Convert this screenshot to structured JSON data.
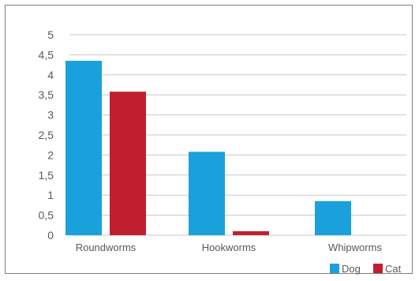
{
  "chart_data": {
    "type": "bar",
    "categories": [
      "Roundworms",
      "Hookworms",
      "Whipworms"
    ],
    "series": [
      {
        "name": "Dog",
        "values": [
          4.35,
          2.08,
          0.85
        ],
        "color": "#1aa1db"
      },
      {
        "name": "Cat",
        "values": [
          3.58,
          0.1,
          0
        ],
        "color": "#c0202e"
      }
    ],
    "title": "",
    "xlabel": "",
    "ylabel": "",
    "ylim": [
      0,
      5
    ],
    "yticks": [
      "0",
      "0,5",
      "1",
      "1,5",
      "2",
      "2,5",
      "3",
      "3,5",
      "4",
      "4,5",
      "5"
    ],
    "grid": true,
    "legend_position": "bottom-right"
  }
}
